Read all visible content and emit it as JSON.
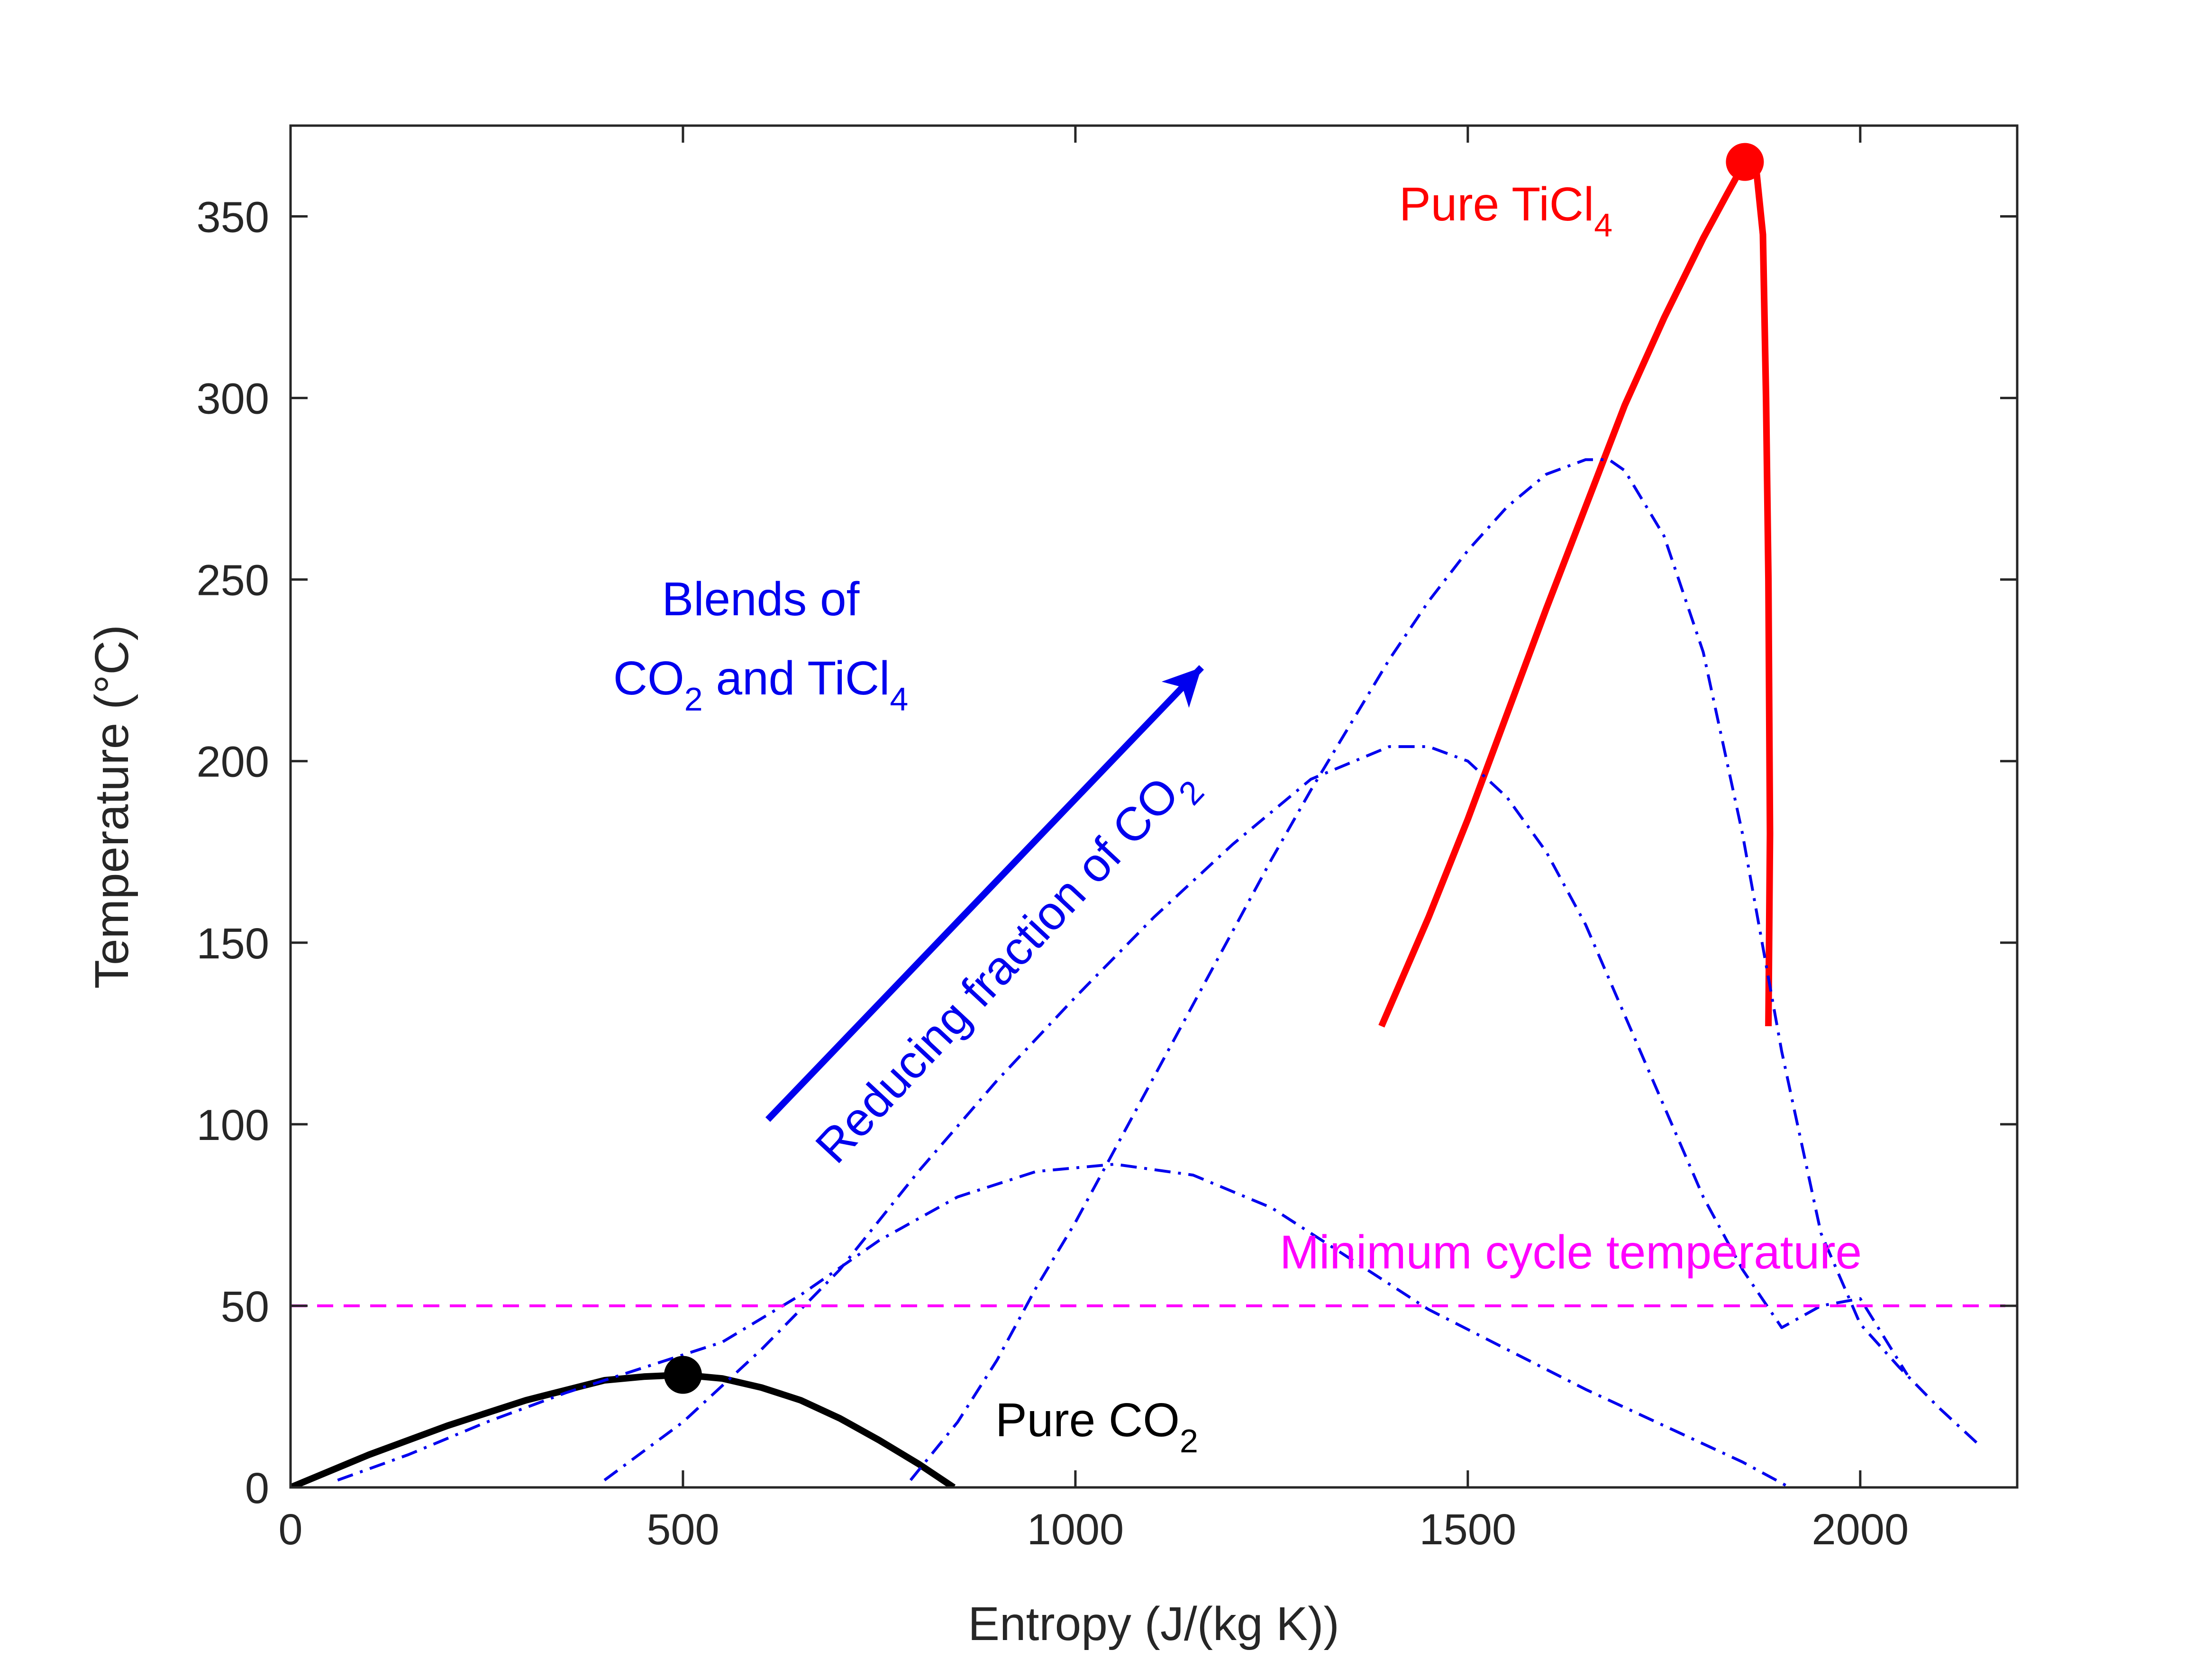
{
  "chart_data": {
    "type": "line",
    "xlabel": "Entropy (J/(kg K))",
    "ylabel": "Temperature (°C)",
    "xlim": [
      0,
      2200
    ],
    "ylim": [
      0,
      375
    ],
    "xticks": [
      0,
      500,
      1000,
      1500,
      2000
    ],
    "yticks": [
      0,
      50,
      100,
      150,
      200,
      250,
      300,
      350
    ],
    "grid": false,
    "colors": {
      "co2": "#000000",
      "ticl4": "#ff0000",
      "blend": "#0000ee",
      "min_temp": "#ff00ff"
    },
    "series": [
      {
        "key": "co2",
        "style": "solid",
        "x": [
          0,
          100,
          200,
          300,
          400,
          450,
          500,
          550,
          600,
          650,
          700,
          750,
          800,
          845
        ],
        "y": [
          0,
          9,
          17,
          24,
          29.5,
          30.5,
          31,
          30,
          27.5,
          24,
          19,
          13,
          6.5,
          0
        ],
        "critical_point": {
          "x": 500,
          "y": 31
        }
      },
      {
        "key": "ticl4",
        "style": "solid",
        "x": [
          1390,
          1450,
          1500,
          1550,
          1600,
          1650,
          1700,
          1750,
          1800,
          1830,
          1853,
          1868,
          1876,
          1880,
          1883,
          1885,
          1883
        ],
        "y": [
          127,
          157,
          184,
          213,
          242,
          270,
          298,
          322,
          344,
          356,
          365,
          362,
          345,
          300,
          250,
          180,
          127
        ],
        "critical_point": {
          "x": 1853,
          "y": 365
        }
      },
      {
        "key": "blend",
        "style": "dashdot",
        "x": [
          60,
          150,
          250,
          350,
          450,
          550,
          650,
          750,
          850,
          950,
          1050,
          1150,
          1250,
          1350,
          1450,
          1550,
          1650,
          1750,
          1850,
          1910
        ],
        "y": [
          2,
          9,
          18,
          26,
          33,
          40,
          53,
          68,
          80,
          87,
          89,
          86,
          77,
          63,
          49,
          38,
          27,
          17,
          7,
          0
        ]
      },
      {
        "key": "blend",
        "style": "dashdot",
        "x": [
          400,
          500,
          600,
          700,
          800,
          900,
          1000,
          1100,
          1200,
          1300,
          1400,
          1450,
          1500,
          1550,
          1600,
          1650,
          1700,
          1750,
          1800,
          1850,
          1900,
          1950,
          2000,
          2060
        ],
        "y": [
          2,
          18,
          38,
          60,
          87,
          112,
          135,
          157,
          177,
          195,
          204,
          204,
          200,
          190,
          175,
          155,
          130,
          105,
          80,
          60,
          44,
          50,
          52,
          31
        ]
      },
      {
        "key": "blend",
        "style": "dashdot",
        "x": [
          790,
          850,
          900,
          950,
          1000,
          1050,
          1100,
          1150,
          1200,
          1250,
          1300,
          1350,
          1400,
          1450,
          1500,
          1550,
          1600,
          1650,
          1680,
          1700,
          1750,
          1800,
          1850,
          1900,
          1950,
          2000,
          2050,
          2100,
          2150
        ],
        "y": [
          2,
          18,
          35,
          55,
          73,
          93,
          113,
          133,
          153,
          173,
          192,
          210,
          228,
          244,
          258,
          270,
          279,
          283,
          283,
          280,
          262,
          230,
          180,
          120,
          70,
          45,
          33,
          22,
          12
        ]
      },
      {
        "key": "min_temp",
        "style": "dashed",
        "x": [
          0,
          2200
        ],
        "y": [
          50,
          50
        ]
      }
    ],
    "annotations": {
      "pure_co2": {
        "text": "Pure CO",
        "sub": "2"
      },
      "pure_ticl4": {
        "text": "Pure TiCl",
        "sub": "4"
      },
      "blends_line1": "Blends of",
      "blends_line2": {
        "a": "CO",
        "a_sub": "2",
        "b": " and TiCl",
        "b_sub": "4"
      },
      "reducing": {
        "text": "Reducing fraction of CO",
        "sub": "2"
      },
      "min_temp": "Minimum cycle temperature"
    }
  }
}
